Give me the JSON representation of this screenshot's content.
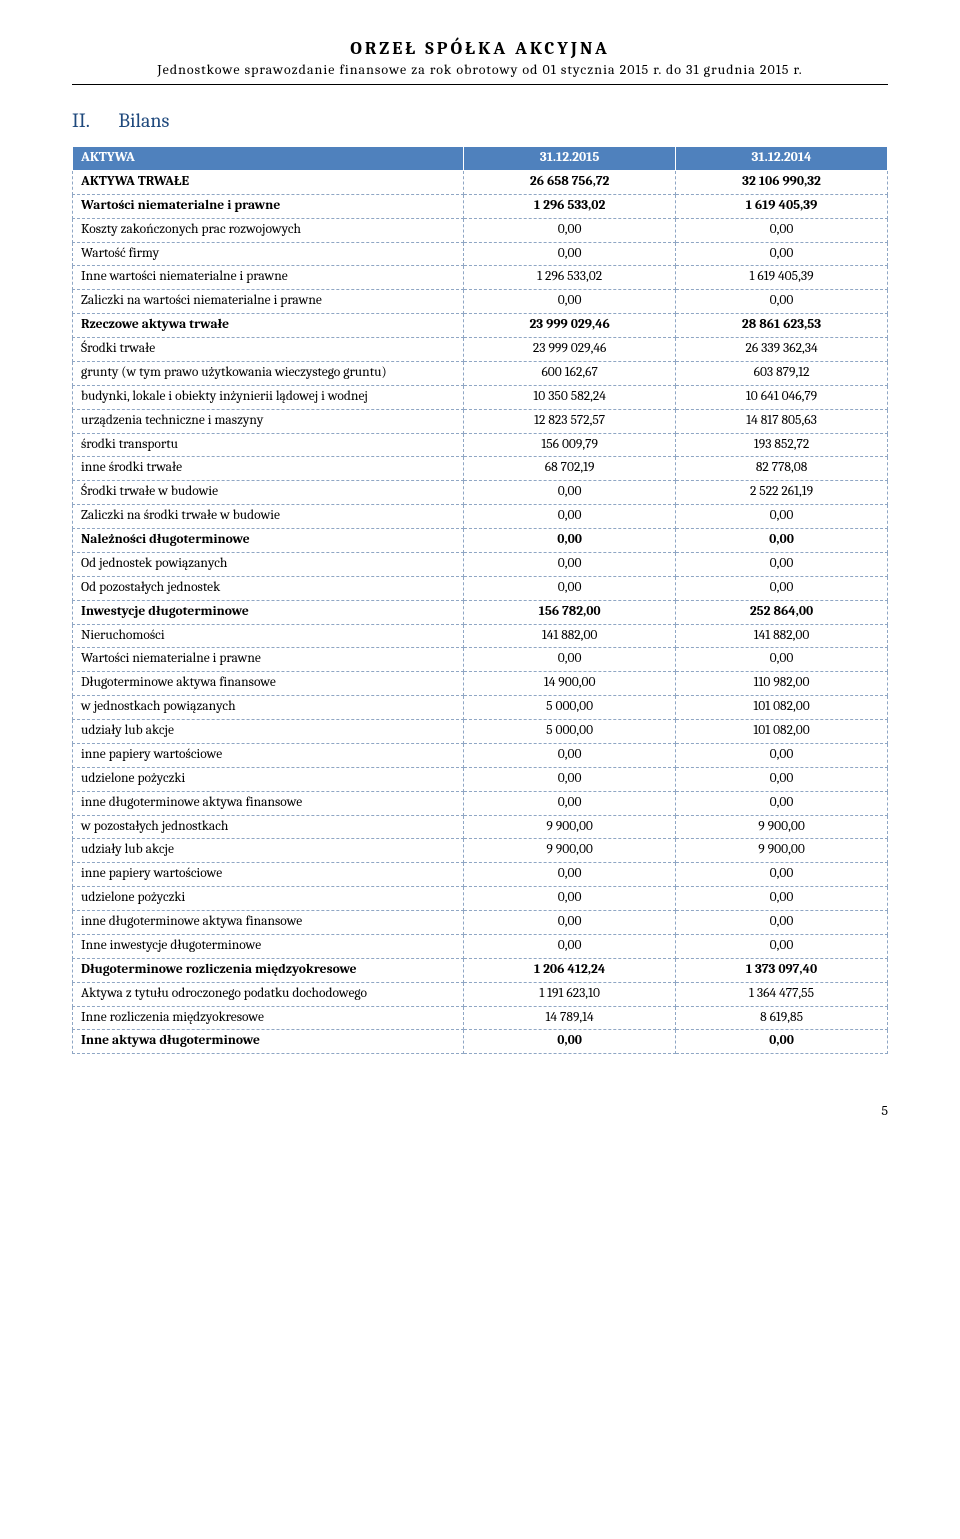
{
  "header": {
    "company": "ORZEŁ SPÓŁKA AKCYJNA",
    "subtitle": "Jednostkowe sprawozdanie finansowe za rok obrotowy od 01 stycznia 2015 r. do 31 grudnia 2015 r."
  },
  "section": {
    "num": "II.",
    "title": "Bilans"
  },
  "table": {
    "header": {
      "label": "AKTYWA",
      "col1": "31.12.2015",
      "col2": "31.12.2014"
    },
    "rows": [
      {
        "label": "AKTYWA TRWAŁE",
        "v1": "26 658 756,72",
        "v2": "32 106 990,32",
        "type": "sec"
      },
      {
        "label": "Wartości niematerialne i prawne",
        "v1": "1 296 533,02",
        "v2": "1 619 405,39",
        "type": "sec"
      },
      {
        "label": "Koszty zakończonych prac rozwojowych",
        "v1": "0,00",
        "v2": "0,00"
      },
      {
        "label": "Wartość firmy",
        "v1": "0,00",
        "v2": "0,00"
      },
      {
        "label": "Inne wartości niematerialne i prawne",
        "v1": "1 296 533,02",
        "v2": "1 619 405,39"
      },
      {
        "label": "Zaliczki na wartości niematerialne i prawne",
        "v1": "0,00",
        "v2": "0,00"
      },
      {
        "label": "Rzeczowe aktywa trwałe",
        "v1": "23 999 029,46",
        "v2": "28 861 623,53",
        "type": "sec"
      },
      {
        "label": "Środki trwałe",
        "v1": "23 999 029,46",
        "v2": "26 339 362,34"
      },
      {
        "label": "grunty (w tym prawo użytkowania wieczystego gruntu)",
        "v1": "600 162,67",
        "v2": "603 879,12"
      },
      {
        "label": "budynki, lokale i obiekty inżynierii lądowej i wodnej",
        "v1": "10 350 582,24",
        "v2": "10 641 046,79"
      },
      {
        "label": "urządzenia techniczne i maszyny",
        "v1": "12 823 572,57",
        "v2": "14 817 805,63"
      },
      {
        "label": "środki transportu",
        "v1": "156 009,79",
        "v2": "193 852,72"
      },
      {
        "label": "inne środki trwałe",
        "v1": "68 702,19",
        "v2": "82 778,08"
      },
      {
        "label": "Środki trwałe w budowie",
        "v1": "0,00",
        "v2": "2 522 261,19"
      },
      {
        "label": "Zaliczki na środki trwałe w budowie",
        "v1": "0,00",
        "v2": "0,00"
      },
      {
        "label": "Należności długoterminowe",
        "v1": "0,00",
        "v2": "0,00",
        "type": "sec"
      },
      {
        "label": "Od jednostek powiązanych",
        "v1": "0,00",
        "v2": "0,00"
      },
      {
        "label": "Od pozostałych jednostek",
        "v1": "0,00",
        "v2": "0,00"
      },
      {
        "label": "Inwestycje długoterminowe",
        "v1": "156 782,00",
        "v2": "252 864,00",
        "type": "sec"
      },
      {
        "label": "Nieruchomości",
        "v1": "141 882,00",
        "v2": "141 882,00"
      },
      {
        "label": "Wartości niematerialne i prawne",
        "v1": "0,00",
        "v2": "0,00"
      },
      {
        "label": "Długoterminowe aktywa finansowe",
        "v1": "14 900,00",
        "v2": "110 982,00"
      },
      {
        "label": "w jednostkach powiązanych",
        "v1": "5 000,00",
        "v2": "101 082,00"
      },
      {
        "label": "udziały lub akcje",
        "v1": "5 000,00",
        "v2": "101 082,00"
      },
      {
        "label": "inne papiery wartościowe",
        "v1": "0,00",
        "v2": "0,00"
      },
      {
        "label": "udzielone pożyczki",
        "v1": "0,00",
        "v2": "0,00"
      },
      {
        "label": "inne długoterminowe aktywa finansowe",
        "v1": "0,00",
        "v2": "0,00"
      },
      {
        "label": "w pozostałych jednostkach",
        "v1": "9 900,00",
        "v2": "9 900,00"
      },
      {
        "label": "udziały lub akcje",
        "v1": "9 900,00",
        "v2": "9 900,00"
      },
      {
        "label": "inne papiery wartościowe",
        "v1": "0,00",
        "v2": "0,00"
      },
      {
        "label": "udzielone pożyczki",
        "v1": "0,00",
        "v2": "0,00"
      },
      {
        "label": "inne długoterminowe aktywa finansowe",
        "v1": "0,00",
        "v2": "0,00"
      },
      {
        "label": "Inne inwestycje długoterminowe",
        "v1": "0,00",
        "v2": "0,00"
      },
      {
        "label": "Długoterminowe rozliczenia międzyokresowe",
        "v1": "1 206 412,24",
        "v2": "1 373 097,40",
        "type": "sec"
      },
      {
        "label": "Aktywa z tytułu odroczonego podatku dochodowego",
        "v1": "1 191 623,10",
        "v2": "1 364 477,55"
      },
      {
        "label": "Inne rozliczenia międzyokresowe",
        "v1": "14 789,14",
        "v2": "8 619,85"
      },
      {
        "label": "Inne aktywa długoterminowe",
        "v1": "0,00",
        "v2": "0,00",
        "type": "sec"
      }
    ]
  },
  "footer": {
    "page": "5"
  }
}
